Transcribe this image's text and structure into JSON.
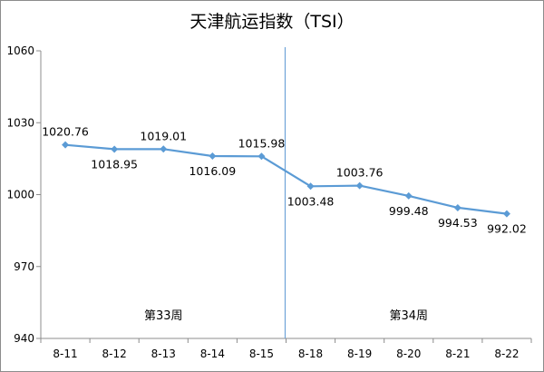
{
  "chart_data": {
    "type": "line",
    "title": "天津航运指数（TSI）",
    "categories": [
      "8-11",
      "8-12",
      "8-13",
      "8-14",
      "8-15",
      "8-18",
      "8-19",
      "8-20",
      "8-21",
      "8-22"
    ],
    "series": [
      {
        "values": [
          1020.76,
          1018.95,
          1019.01,
          1016.09,
          1015.98,
          1003.48,
          1003.76,
          999.48,
          994.53,
          992.02
        ]
      }
    ],
    "data_labels": [
      "1020.76",
      "1018.95",
      "1019.01",
      "1016.09",
      "1015.98",
      "1003.48",
      "1003.76",
      "999.48",
      "994.53",
      "992.02"
    ],
    "ylim": [
      940,
      1060
    ],
    "yticks": [
      940,
      970,
      1000,
      1030,
      1060
    ],
    "grid": false,
    "line_color": "#5B9BD5",
    "divider": {
      "after_category_index": 4,
      "color": "#6FA3D8"
    },
    "week_labels": [
      {
        "text": "第33周",
        "centered_on_categories": [
          0,
          4
        ]
      },
      {
        "text": "第34周",
        "centered_on_categories": [
          5,
          9
        ]
      }
    ]
  }
}
